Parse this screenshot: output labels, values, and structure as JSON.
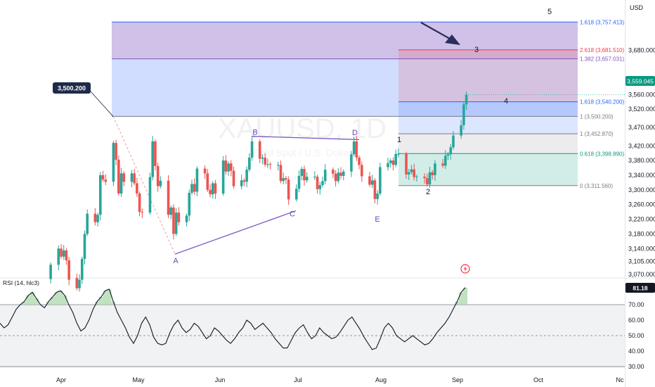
{
  "header": {
    "currency": "USD",
    "callout_price": "3,500.200",
    "last_price_label": "3,559.045",
    "rsi_value_label": "81.18"
  },
  "watermark": {
    "symbol": "XAUUSD, 1D",
    "subtitle": "Gold Spot / U.S. Dollar"
  },
  "rsi_panel": {
    "label": "RSI (14, hlc3)",
    "levels": [
      "70.00",
      "60.00",
      "50.00",
      "40.00",
      "30.00"
    ]
  },
  "colors": {
    "up": "#26a69a",
    "down": "#ef5350",
    "rsi_line": "#131722",
    "pattern_line": "#7e57c2",
    "fib_blue": "#2962ff",
    "fib_red": "#f23645",
    "fib_green": "#089981",
    "fib_gray": "#787b86"
  },
  "chart_data": [
    {
      "type": "candlestick",
      "title": "XAUUSD, 1D",
      "y_axis": {
        "ticks": [
          "3,680.000",
          "3,600.000",
          "3,560.000",
          "3,520.000",
          "3,470.000",
          "3,420.000",
          "3,380.000",
          "3,340.000",
          "3,300.000",
          "3,260.000",
          "3,220.000",
          "3,180.000",
          "3,140.000",
          "3,105.000",
          "3,070.000"
        ],
        "range": [
          3052,
          3790
        ]
      },
      "x_axis": {
        "ticks": [
          "Apr",
          "May",
          "Jun",
          "Jul",
          "Aug",
          "Sep",
          "Oct",
          "Nc"
        ]
      },
      "series_points": [
        [
          "2025-03-28",
          3057,
          3096
        ],
        [
          "2025-03-31",
          3096,
          3140
        ],
        [
          "2025-04-01",
          3140,
          3118
        ],
        [
          "2025-04-02",
          3118,
          3135
        ],
        [
          "2025-04-03",
          3135,
          3108
        ],
        [
          "2025-04-04",
          3108,
          3055
        ],
        [
          "2025-04-07",
          3060,
          3032
        ],
        [
          "2025-04-08",
          3032,
          3055
        ],
        [
          "2025-04-09",
          3055,
          3112
        ],
        [
          "2025-04-10",
          3112,
          3180
        ],
        [
          "2025-04-11",
          3180,
          3235
        ],
        [
          "2025-04-14",
          3235,
          3212
        ],
        [
          "2025-04-15",
          3212,
          3232
        ],
        [
          "2025-04-16",
          3232,
          3340
        ],
        [
          "2025-04-17",
          3340,
          3328
        ],
        [
          "2025-04-18",
          3328,
          3322
        ],
        [
          "2025-04-21",
          3322,
          3428
        ],
        [
          "2025-04-22",
          3428,
          3382
        ],
        [
          "2025-04-23",
          3382,
          3290
        ],
        [
          "2025-04-24",
          3290,
          3345
        ],
        [
          "2025-04-25",
          3345,
          3322
        ],
        [
          "2025-04-28",
          3322,
          3345
        ],
        [
          "2025-04-29",
          3345,
          3318
        ],
        [
          "2025-04-30",
          3318,
          3290
        ],
        [
          "2025-05-01",
          3290,
          3240
        ],
        [
          "2025-05-02",
          3240,
          3238
        ],
        [
          "2025-05-05",
          3238,
          3335
        ],
        [
          "2025-05-06",
          3335,
          3432
        ],
        [
          "2025-05-07",
          3432,
          3365
        ],
        [
          "2025-05-08",
          3365,
          3310
        ],
        [
          "2025-05-09",
          3310,
          3325
        ],
        [
          "2025-05-12",
          3325,
          3232
        ],
        [
          "2025-05-13",
          3232,
          3252
        ],
        [
          "2025-05-14",
          3252,
          3180
        ],
        [
          "2025-05-15",
          3180,
          3238
        ],
        [
          "2025-05-16",
          3238,
          3212
        ],
        [
          "2025-05-19",
          3212,
          3230
        ],
        [
          "2025-05-20",
          3230,
          3292
        ],
        [
          "2025-05-21",
          3292,
          3316
        ],
        [
          "2025-05-22",
          3316,
          3295
        ],
        [
          "2025-05-23",
          3295,
          3358
        ],
        [
          "2025-05-26",
          3358,
          3345
        ],
        [
          "2025-05-27",
          3345,
          3300
        ],
        [
          "2025-05-28",
          3300,
          3288
        ],
        [
          "2025-05-29",
          3288,
          3318
        ],
        [
          "2025-05-30",
          3318,
          3290
        ],
        [
          "2025-06-02",
          3290,
          3380
        ],
        [
          "2025-06-03",
          3380,
          3350
        ],
        [
          "2025-06-04",
          3350,
          3372
        ],
        [
          "2025-06-05",
          3372,
          3352
        ],
        [
          "2025-06-06",
          3352,
          3310
        ],
        [
          "2025-06-09",
          3310,
          3326
        ],
        [
          "2025-06-10",
          3326,
          3322
        ],
        [
          "2025-06-11",
          3322,
          3355
        ],
        [
          "2025-06-12",
          3355,
          3388
        ],
        [
          "2025-06-13",
          3388,
          3432
        ],
        [
          "2025-06-16",
          3432,
          3385
        ],
        [
          "2025-06-17",
          3385,
          3388
        ],
        [
          "2025-06-18",
          3388,
          3369
        ],
        [
          "2025-06-19",
          3369,
          3370
        ],
        [
          "2025-06-20",
          3370,
          3368
        ],
        [
          "2025-06-23",
          3368,
          3368
        ],
        [
          "2025-06-24",
          3368,
          3324
        ],
        [
          "2025-06-25",
          3324,
          3332
        ],
        [
          "2025-06-26",
          3332,
          3328
        ],
        [
          "2025-06-27",
          3328,
          3274
        ],
        [
          "2025-06-30",
          3274,
          3303
        ],
        [
          "2025-07-01",
          3303,
          3338
        ],
        [
          "2025-07-02",
          3338,
          3357
        ],
        [
          "2025-07-03",
          3357,
          3326
        ],
        [
          "2025-07-04",
          3326,
          3336
        ],
        [
          "2025-07-07",
          3336,
          3336
        ],
        [
          "2025-07-08",
          3336,
          3302
        ],
        [
          "2025-07-09",
          3302,
          3313
        ],
        [
          "2025-07-10",
          3313,
          3324
        ],
        [
          "2025-07-11",
          3324,
          3355
        ],
        [
          "2025-07-14",
          3355,
          3344
        ],
        [
          "2025-07-15",
          3344,
          3324
        ],
        [
          "2025-07-16",
          3324,
          3347
        ],
        [
          "2025-07-17",
          3347,
          3338
        ],
        [
          "2025-07-18",
          3338,
          3350
        ],
        [
          "2025-07-21",
          3350,
          3397
        ],
        [
          "2025-07-22",
          3397,
          3432
        ],
        [
          "2025-07-23",
          3432,
          3388
        ],
        [
          "2025-07-24",
          3388,
          3368
        ],
        [
          "2025-07-25",
          3368,
          3337
        ],
        [
          "2025-07-28",
          3337,
          3314
        ],
        [
          "2025-07-29",
          3314,
          3326
        ],
        [
          "2025-07-30",
          3326,
          3275
        ],
        [
          "2025-07-31",
          3275,
          3290
        ],
        [
          "2025-08-01",
          3290,
          3362
        ],
        [
          "2025-08-04",
          3362,
          3373
        ],
        [
          "2025-08-05",
          3373,
          3380
        ],
        [
          "2025-08-06",
          3380,
          3368
        ],
        [
          "2025-08-07",
          3368,
          3398
        ],
        [
          "2025-08-08",
          3398,
          3398
        ],
        [
          "2025-08-11",
          3398,
          3342
        ],
        [
          "2025-08-12",
          3342,
          3348
        ],
        [
          "2025-08-13",
          3348,
          3356
        ],
        [
          "2025-08-14",
          3356,
          3335
        ],
        [
          "2025-08-15",
          3335,
          3336
        ],
        [
          "2025-08-18",
          3336,
          3332
        ],
        [
          "2025-08-19",
          3332,
          3315
        ],
        [
          "2025-08-20",
          3315,
          3348
        ],
        [
          "2025-08-21",
          3348,
          3340
        ],
        [
          "2025-08-22",
          3340,
          3372
        ],
        [
          "2025-08-25",
          3372,
          3366
        ],
        [
          "2025-08-26",
          3366,
          3393
        ],
        [
          "2025-08-27",
          3393,
          3397
        ],
        [
          "2025-08-28",
          3397,
          3416
        ],
        [
          "2025-08-29",
          3416,
          3448
        ],
        [
          "2025-09-01",
          3448,
          3476
        ],
        [
          "2025-09-02",
          3476,
          3533
        ],
        [
          "2025-09-03",
          3533,
          3559
        ]
      ],
      "series_fields": [
        "date",
        "open",
        "close"
      ],
      "last_price": 3559.045,
      "annotations": [
        {
          "text": "3,500.200",
          "kind": "price callout"
        },
        {
          "text": "B"
        },
        {
          "text": "D"
        },
        {
          "text": "A"
        },
        {
          "text": "C"
        },
        {
          "text": "E"
        },
        {
          "text": "1"
        },
        {
          "text": "2"
        },
        {
          "text": "3"
        },
        {
          "text": "4"
        },
        {
          "text": "5"
        }
      ],
      "fib_levels": [
        {
          "ratio": "1.618",
          "price": 3757.413,
          "label": "1.618 (3,757.413)"
        },
        {
          "ratio": "2.618",
          "price": 3681.51,
          "label": "2.618 (3,681.510)"
        },
        {
          "ratio": "1.382",
          "price": 3657.031,
          "label": "1.382 (3,657.031)"
        },
        {
          "ratio": "1.618",
          "price": 3540.2,
          "label": "1.618 (3,540.200)"
        },
        {
          "ratio": "1",
          "price": 3500.2,
          "label": "1 (3,500.200)"
        },
        {
          "ratio": "1",
          "price": 3452.87,
          "label": "1 (3,452.870)"
        },
        {
          "ratio": "0.618",
          "price": 3398.89,
          "label": "0.618 (3,398.890)"
        },
        {
          "ratio": "0",
          "price": 3311.56,
          "label": "0 (3,311.560)"
        }
      ]
    },
    {
      "type": "line",
      "title": "RSI (14, hlc3)",
      "y_axis": {
        "ticks": [
          "70.00",
          "60.00",
          "50.00",
          "40.00",
          "30.00"
        ],
        "range": [
          28,
          86
        ]
      },
      "series": [
        {
          "values": [
            58,
            55,
            57,
            62,
            67,
            70,
            72,
            76,
            78,
            74,
            70,
            68,
            72,
            75,
            78,
            79,
            76,
            70,
            65,
            58,
            53,
            55,
            60,
            67,
            72,
            75,
            79,
            80,
            72,
            65,
            60,
            55,
            49,
            45,
            50,
            58,
            62,
            57,
            49,
            45,
            44,
            45,
            52,
            57,
            60,
            55,
            52,
            54,
            58,
            56,
            52,
            48,
            50,
            55,
            53,
            50,
            47,
            45,
            48,
            52,
            55,
            60,
            58,
            54,
            56,
            58,
            55,
            52,
            48,
            45,
            42,
            42,
            47,
            52,
            55,
            57,
            52,
            48,
            50,
            55,
            52,
            50,
            48,
            49,
            52,
            56,
            60,
            62,
            58,
            54,
            49,
            45,
            41,
            42,
            48,
            55,
            58,
            55,
            50,
            48,
            46,
            48,
            50,
            48,
            46,
            44,
            45,
            48,
            52,
            55,
            58,
            62,
            67,
            72,
            78,
            81
          ]
        }
      ],
      "last_value": 81.18
    }
  ]
}
